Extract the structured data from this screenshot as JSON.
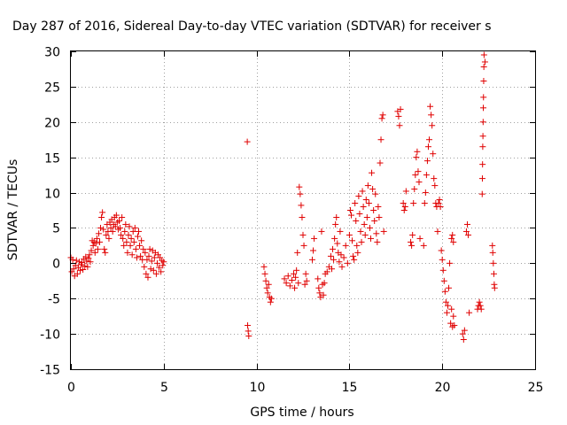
{
  "chart_data": {
    "type": "scatter",
    "title": "Day 287 of 2016, Sidereal Day-to-day VTEC variation (SDTVAR) for receiver s",
    "xlabel": "GPS time / hours",
    "ylabel": "SDTVAR / TECUs",
    "xlim": [
      0,
      25
    ],
    "ylim": [
      -15,
      30
    ],
    "x_ticks": [
      0,
      5,
      10,
      15,
      20,
      25
    ],
    "y_ticks": [
      -15,
      -10,
      -5,
      0,
      5,
      10,
      15,
      20,
      25,
      30
    ],
    "x_tick_labels": [
      "0",
      "5",
      "10",
      "15",
      "20",
      "25"
    ],
    "y_tick_labels": [
      "-15",
      "-10",
      "-5",
      "0",
      "5",
      "10",
      "15",
      "20",
      "25",
      "30"
    ],
    "grid": true,
    "marker": "+",
    "point_color": "#e00000",
    "series": [
      {
        "points": [
          [
            0.0,
            0.8
          ],
          [
            0.05,
            -1.2
          ],
          [
            0.1,
            0.5
          ],
          [
            0.15,
            -0.8
          ],
          [
            0.2,
            -1.8
          ],
          [
            0.25,
            -0.3
          ],
          [
            0.3,
            0.4
          ],
          [
            0.35,
            -1.5
          ],
          [
            0.4,
            -0.6
          ],
          [
            0.45,
            0.2
          ],
          [
            0.5,
            -1.0
          ],
          [
            0.55,
            -0.2
          ],
          [
            0.6,
            0.1
          ],
          [
            0.65,
            -0.9
          ],
          [
            0.7,
            0.6
          ],
          [
            0.75,
            -0.4
          ],
          [
            0.8,
            0.9
          ],
          [
            0.85,
            0.3
          ],
          [
            0.9,
            -0.5
          ],
          [
            0.95,
            0.7
          ],
          [
            1.0,
            1.2
          ],
          [
            1.05,
            0.2
          ],
          [
            1.1,
            1.8
          ],
          [
            1.15,
            3.2
          ],
          [
            1.2,
            2.5
          ],
          [
            1.25,
            3.0
          ],
          [
            1.3,
            1.5
          ],
          [
            1.35,
            2.8
          ],
          [
            1.4,
            3.5
          ],
          [
            1.45,
            2.0
          ],
          [
            1.5,
            4.2
          ],
          [
            1.55,
            3.0
          ],
          [
            1.6,
            5.0
          ],
          [
            1.65,
            6.5
          ],
          [
            1.7,
            7.2
          ],
          [
            1.75,
            4.8
          ],
          [
            1.8,
            2.0
          ],
          [
            1.85,
            1.5
          ],
          [
            1.9,
            4.0
          ],
          [
            1.95,
            5.5
          ],
          [
            2.0,
            4.5
          ],
          [
            2.05,
            3.5
          ],
          [
            2.1,
            5.8
          ],
          [
            2.15,
            5.0
          ],
          [
            2.2,
            6.2
          ],
          [
            2.25,
            4.5
          ],
          [
            2.3,
            5.5
          ],
          [
            2.35,
            6.5
          ],
          [
            2.4,
            5.2
          ],
          [
            2.45,
            6.8
          ],
          [
            2.5,
            5.8
          ],
          [
            2.55,
            4.8
          ],
          [
            2.6,
            6.0
          ],
          [
            2.65,
            5.0
          ],
          [
            2.7,
            4.0
          ],
          [
            2.75,
            6.5
          ],
          [
            2.8,
            3.5
          ],
          [
            2.85,
            2.5
          ],
          [
            2.9,
            4.5
          ],
          [
            2.95,
            5.5
          ],
          [
            3.0,
            3.0
          ],
          [
            3.05,
            1.5
          ],
          [
            3.1,
            4.0
          ],
          [
            3.15,
            5.2
          ],
          [
            3.2,
            2.5
          ],
          [
            3.25,
            3.5
          ],
          [
            3.3,
            1.2
          ],
          [
            3.35,
            4.5
          ],
          [
            3.4,
            3.0
          ],
          [
            3.45,
            5.0
          ],
          [
            3.5,
            2.0
          ],
          [
            3.55,
            0.8
          ],
          [
            3.6,
            3.8
          ],
          [
            3.65,
            4.5
          ],
          [
            3.7,
            2.5
          ],
          [
            3.75,
            1.0
          ],
          [
            3.8,
            3.2
          ],
          [
            3.85,
            0.5
          ],
          [
            3.9,
            2.0
          ],
          [
            3.95,
            -0.5
          ],
          [
            4.0,
            1.5
          ],
          [
            4.05,
            -1.5
          ],
          [
            4.1,
            0.5
          ],
          [
            4.15,
            -2.0
          ],
          [
            4.2,
            1.0
          ],
          [
            4.25,
            2.0
          ],
          [
            4.3,
            -0.8
          ],
          [
            4.35,
            0.3
          ],
          [
            4.4,
            1.8
          ],
          [
            4.45,
            -1.0
          ],
          [
            4.5,
            0.8
          ],
          [
            4.55,
            1.5
          ],
          [
            4.6,
            -1.5
          ],
          [
            4.65,
            0.0
          ],
          [
            4.7,
            1.2
          ],
          [
            4.75,
            -0.6
          ],
          [
            4.8,
            0.8
          ],
          [
            4.85,
            -1.2
          ],
          [
            4.9,
            0.4
          ],
          [
            4.95,
            -0.3
          ],
          [
            5.0,
            0.2
          ],
          [
            9.5,
            17.2
          ],
          [
            9.52,
            -8.8
          ],
          [
            9.55,
            -9.6
          ],
          [
            9.58,
            -10.3
          ],
          [
            10.4,
            -0.5
          ],
          [
            10.45,
            -1.5
          ],
          [
            10.5,
            -2.5
          ],
          [
            10.55,
            -3.5
          ],
          [
            10.6,
            -4.2
          ],
          [
            10.65,
            -3.0
          ],
          [
            10.7,
            -4.8
          ],
          [
            10.75,
            -5.5
          ],
          [
            10.8,
            -5.0
          ],
          [
            11.5,
            -2.2
          ],
          [
            11.6,
            -2.8
          ],
          [
            11.7,
            -1.8
          ],
          [
            11.8,
            -3.2
          ],
          [
            11.9,
            -2.4
          ],
          [
            12.0,
            -1.5
          ],
          [
            12.05,
            -3.5
          ],
          [
            12.1,
            -2.0
          ],
          [
            12.15,
            -1.0
          ],
          [
            12.2,
            1.5
          ],
          [
            12.25,
            -2.8
          ],
          [
            12.3,
            10.8
          ],
          [
            12.35,
            9.8
          ],
          [
            12.4,
            8.2
          ],
          [
            12.45,
            6.5
          ],
          [
            12.5,
            4.0
          ],
          [
            12.55,
            2.5
          ],
          [
            12.6,
            -3.0
          ],
          [
            12.65,
            -1.5
          ],
          [
            12.7,
            -2.5
          ],
          [
            13.0,
            0.5
          ],
          [
            13.05,
            1.8
          ],
          [
            13.1,
            3.5
          ],
          [
            13.3,
            -2.2
          ],
          [
            13.35,
            -3.5
          ],
          [
            13.4,
            -4.2
          ],
          [
            13.45,
            -4.8
          ],
          [
            13.5,
            4.5
          ],
          [
            13.55,
            -3.0
          ],
          [
            13.6,
            -4.5
          ],
          [
            13.65,
            -2.8
          ],
          [
            13.7,
            -1.5
          ],
          [
            13.8,
            -1.2
          ],
          [
            13.9,
            -0.5
          ],
          [
            14.0,
            1.0
          ],
          [
            14.05,
            -0.8
          ],
          [
            14.1,
            2.0
          ],
          [
            14.15,
            0.5
          ],
          [
            14.2,
            3.5
          ],
          [
            14.25,
            5.5
          ],
          [
            14.3,
            6.5
          ],
          [
            14.35,
            2.8
          ],
          [
            14.4,
            1.5
          ],
          [
            14.45,
            0.2
          ],
          [
            14.5,
            4.5
          ],
          [
            14.55,
            1.2
          ],
          [
            14.6,
            -0.5
          ],
          [
            14.7,
            0.8
          ],
          [
            14.8,
            2.5
          ],
          [
            14.9,
            0.0
          ],
          [
            15.0,
            4.0
          ],
          [
            15.05,
            7.5
          ],
          [
            15.1,
            6.8
          ],
          [
            15.15,
            3.2
          ],
          [
            15.2,
            1.0
          ],
          [
            15.25,
            0.5
          ],
          [
            15.3,
            8.5
          ],
          [
            15.35,
            6.0
          ],
          [
            15.4,
            2.5
          ],
          [
            15.45,
            1.5
          ],
          [
            15.5,
            9.5
          ],
          [
            15.55,
            7.0
          ],
          [
            15.6,
            4.5
          ],
          [
            15.65,
            3.0
          ],
          [
            15.7,
            10.2
          ],
          [
            15.75,
            8.0
          ],
          [
            15.8,
            5.5
          ],
          [
            15.85,
            4.0
          ],
          [
            15.9,
            9.0
          ],
          [
            15.95,
            6.5
          ],
          [
            16.0,
            11.0
          ],
          [
            16.05,
            8.5
          ],
          [
            16.1,
            5.0
          ],
          [
            16.15,
            3.5
          ],
          [
            16.2,
            12.8
          ],
          [
            16.25,
            10.5
          ],
          [
            16.3,
            7.5
          ],
          [
            16.35,
            6.0
          ],
          [
            16.4,
            9.8
          ],
          [
            16.45,
            4.2
          ],
          [
            16.5,
            3.0
          ],
          [
            16.55,
            8.0
          ],
          [
            16.6,
            6.5
          ],
          [
            16.65,
            14.2
          ],
          [
            16.7,
            17.5
          ],
          [
            16.75,
            20.5
          ],
          [
            16.8,
            21.0
          ],
          [
            16.85,
            4.5
          ],
          [
            17.6,
            21.5
          ],
          [
            17.65,
            20.8
          ],
          [
            17.7,
            19.5
          ],
          [
            17.75,
            21.8
          ],
          [
            17.9,
            8.5
          ],
          [
            17.95,
            7.5
          ],
          [
            18.0,
            8.0
          ],
          [
            18.05,
            10.2
          ],
          [
            18.3,
            3.0
          ],
          [
            18.35,
            2.5
          ],
          [
            18.4,
            4.0
          ],
          [
            18.45,
            8.5
          ],
          [
            18.5,
            10.5
          ],
          [
            18.55,
            12.5
          ],
          [
            18.6,
            15.0
          ],
          [
            18.65,
            15.8
          ],
          [
            18.7,
            13.0
          ],
          [
            18.75,
            11.5
          ],
          [
            18.8,
            3.5
          ],
          [
            19.0,
            2.5
          ],
          [
            19.05,
            8.5
          ],
          [
            19.1,
            10.0
          ],
          [
            19.15,
            12.5
          ],
          [
            19.2,
            14.5
          ],
          [
            19.25,
            16.5
          ],
          [
            19.3,
            17.5
          ],
          [
            19.35,
            22.2
          ],
          [
            19.4,
            21.0
          ],
          [
            19.45,
            19.5
          ],
          [
            19.5,
            15.5
          ],
          [
            19.55,
            12.0
          ],
          [
            19.6,
            11.0
          ],
          [
            19.65,
            8.5
          ],
          [
            19.7,
            8.0
          ],
          [
            19.75,
            4.5
          ],
          [
            19.8,
            8.5
          ],
          [
            19.85,
            9.0
          ],
          [
            19.9,
            8.0
          ],
          [
            19.95,
            1.8
          ],
          [
            20.0,
            0.5
          ],
          [
            20.05,
            -1.0
          ],
          [
            20.1,
            -2.5
          ],
          [
            20.15,
            -4.0
          ],
          [
            20.2,
            -5.5
          ],
          [
            20.25,
            -7.0
          ],
          [
            20.3,
            -6.0
          ],
          [
            20.35,
            -3.5
          ],
          [
            20.4,
            0.0
          ],
          [
            20.45,
            -8.5
          ],
          [
            20.5,
            -6.5
          ],
          [
            20.55,
            -9.0
          ],
          [
            20.6,
            -7.5
          ],
          [
            20.65,
            -8.8
          ],
          [
            20.5,
            3.5
          ],
          [
            20.55,
            4.0
          ],
          [
            20.6,
            3.0
          ],
          [
            21.1,
            -10.0
          ],
          [
            21.15,
            -10.8
          ],
          [
            21.2,
            -9.5
          ],
          [
            21.3,
            4.5
          ],
          [
            21.35,
            5.5
          ],
          [
            21.4,
            4.0
          ],
          [
            21.45,
            -7.0
          ],
          [
            21.9,
            -6.5
          ],
          [
            21.95,
            -6.0
          ],
          [
            22.0,
            -5.5
          ],
          [
            22.05,
            -6.0
          ],
          [
            22.1,
            -6.5
          ],
          [
            22.15,
            9.8
          ],
          [
            22.16,
            12.0
          ],
          [
            22.17,
            14.0
          ],
          [
            22.18,
            16.5
          ],
          [
            22.19,
            18.0
          ],
          [
            22.2,
            20.0
          ],
          [
            22.21,
            22.0
          ],
          [
            22.22,
            23.5
          ],
          [
            22.23,
            25.8
          ],
          [
            22.24,
            27.8
          ],
          [
            22.25,
            29.5
          ],
          [
            22.3,
            28.5
          ],
          [
            22.7,
            2.5
          ],
          [
            22.72,
            1.5
          ],
          [
            22.75,
            0.0
          ],
          [
            22.78,
            -1.5
          ],
          [
            22.8,
            -3.0
          ],
          [
            22.82,
            -3.5
          ]
        ]
      }
    ]
  }
}
